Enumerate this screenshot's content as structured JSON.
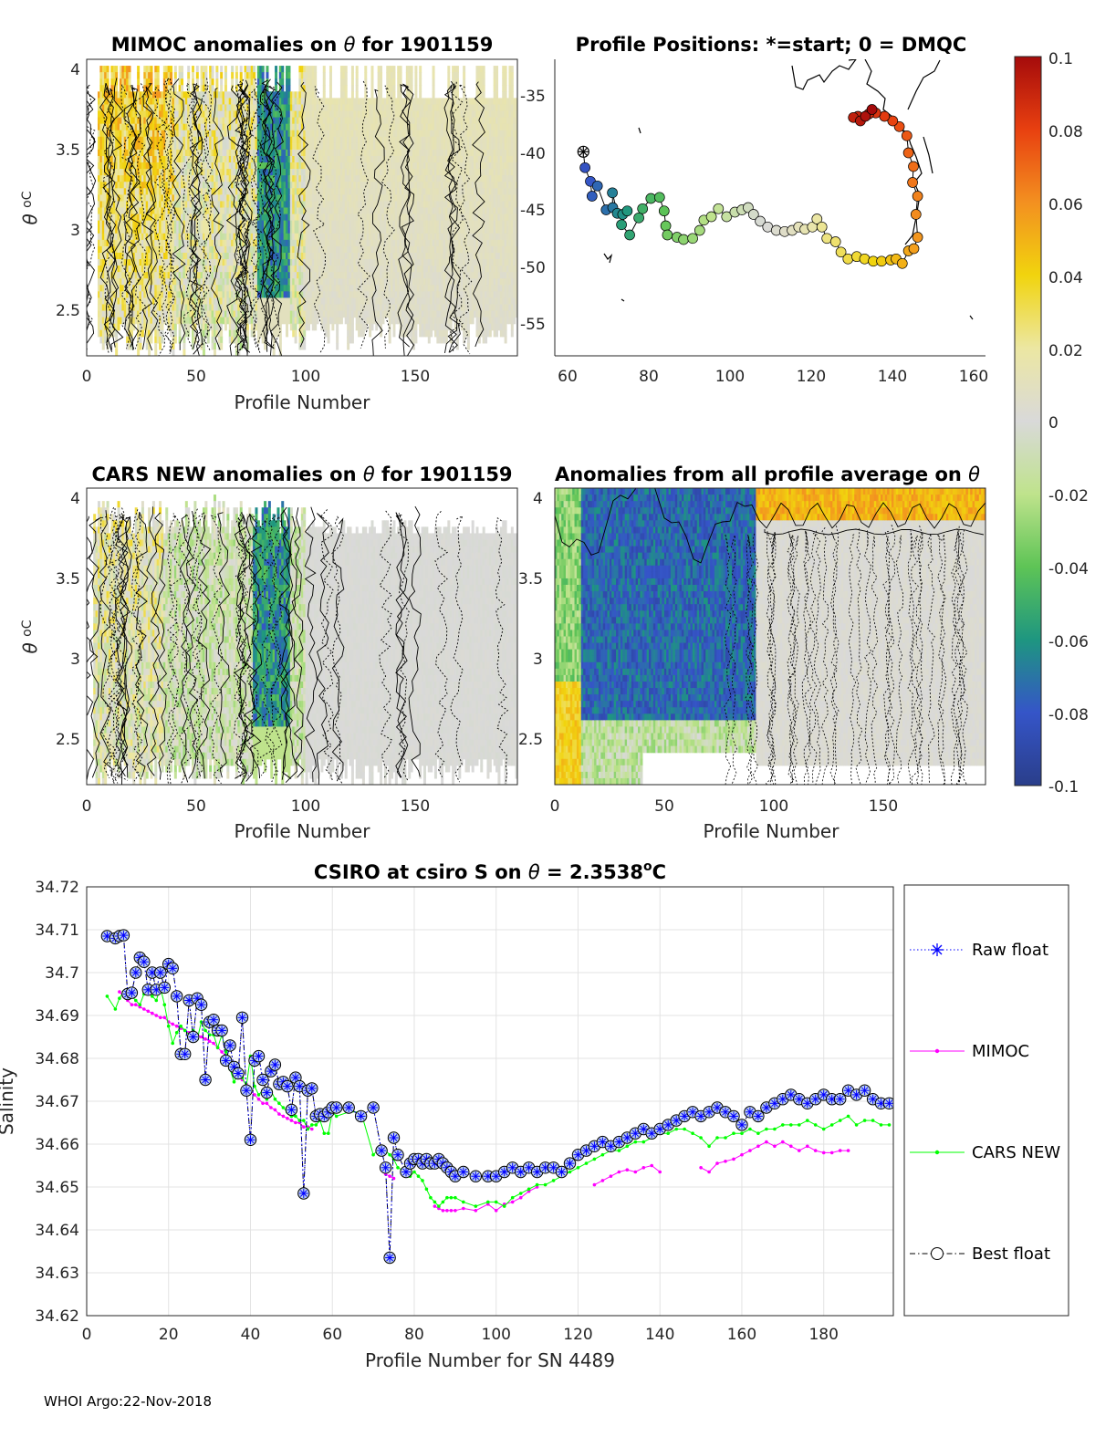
{
  "colors": {
    "raw": "#0000ff",
    "mimoc": "#ff00ff",
    "cars": "#00ff00",
    "best": "#000000",
    "marker_fill": "#bcd0ee",
    "missing_gray": "#d9d9d9"
  },
  "colorbar": {
    "ticks": [
      "0.1",
      "0.08",
      "0.06",
      "0.04",
      "0.02",
      "0",
      "-0.02",
      "-0.04",
      "-0.06",
      "-0.08",
      "-0.1"
    ],
    "range": [
      -0.1,
      0.1
    ]
  },
  "footer": "WHOI Argo:22-Nov-2018",
  "chart_data": [
    {
      "id": "mimoc",
      "type": "heatmap",
      "title_pre": "MIMOC anomalies on",
      "title_sym": "θ",
      "title_post": "for 1901159",
      "xlabel": "Profile Number",
      "ylabel_sym": "θ",
      "ylabel_unit": "oC",
      "xlim": [
        0,
        197
      ],
      "ylim": [
        2.2,
        4.05
      ],
      "xticks": [
        "0",
        "50",
        "100",
        "150"
      ],
      "yticks": [
        "2.5",
        "3",
        "3.5",
        "4"
      ]
    },
    {
      "id": "positions",
      "type": "scatter",
      "title": "Profile Positions: *=start; 0 = DMQC",
      "xlim": [
        58,
        162
      ],
      "ylim": [
        -58,
        -32
      ],
      "xticks": [
        "60",
        "80",
        "100",
        "120",
        "140",
        "160"
      ],
      "yticks": [
        "-35",
        "-40",
        "-45",
        "-50",
        "-55"
      ],
      "track": [
        [
          64.9,
          -40.1
        ],
        [
          65.3,
          -41.5
        ],
        [
          66.6,
          -42.7
        ],
        [
          67.0,
          -44.0
        ],
        [
          68.3,
          -43.1
        ],
        [
          70.4,
          -45.2
        ],
        [
          72.0,
          -45.0
        ],
        [
          71.9,
          -43.7
        ],
        [
          73.1,
          -45.5
        ],
        [
          74.4,
          -45.6
        ],
        [
          75.5,
          -45.3
        ],
        [
          74.1,
          -46.5
        ],
        [
          76.1,
          -47.4
        ],
        [
          78.3,
          -45.9
        ],
        [
          79.2,
          -45.1
        ],
        [
          81.2,
          -44.2
        ],
        [
          83.3,
          -44.1
        ],
        [
          84.4,
          -45.3
        ],
        [
          84.8,
          -46.6
        ],
        [
          85.2,
          -47.4
        ],
        [
          87.5,
          -47.6
        ],
        [
          89.1,
          -47.8
        ],
        [
          91.3,
          -47.7
        ],
        [
          93.0,
          -47.0
        ],
        [
          94.0,
          -46.1
        ],
        [
          95.8,
          -45.8
        ],
        [
          97.5,
          -45.1
        ],
        [
          99.5,
          -45.8
        ],
        [
          101.5,
          -45.4
        ],
        [
          103.2,
          -45.2
        ],
        [
          104.7,
          -45.0
        ],
        [
          106.0,
          -45.6
        ],
        [
          107.6,
          -46.2
        ],
        [
          109.4,
          -46.7
        ],
        [
          111.5,
          -47.0
        ],
        [
          113.5,
          -47.1
        ],
        [
          115.3,
          -47.0
        ],
        [
          116.9,
          -46.7
        ],
        [
          118.4,
          -46.9
        ],
        [
          120.2,
          -46.7
        ],
        [
          121.3,
          -46.0
        ],
        [
          122.5,
          -46.7
        ],
        [
          123.7,
          -47.7
        ],
        [
          125.8,
          -48.0
        ],
        [
          127.1,
          -48.9
        ],
        [
          128.8,
          -49.5
        ],
        [
          130.9,
          -49.3
        ],
        [
          132.8,
          -49.5
        ],
        [
          134.9,
          -49.7
        ],
        [
          136.9,
          -49.7
        ],
        [
          139.1,
          -49.6
        ],
        [
          140.4,
          -49.5
        ],
        [
          141.9,
          -49.9
        ],
        [
          143.4,
          -48.8
        ],
        [
          144.7,
          -48.6
        ],
        [
          145.6,
          -47.6
        ],
        [
          145.2,
          -45.6
        ],
        [
          145.6,
          -44.0
        ],
        [
          144.4,
          -42.8
        ],
        [
          144.6,
          -41.4
        ],
        [
          143.4,
          -40.2
        ],
        [
          143.0,
          -38.7
        ],
        [
          141.2,
          -37.9
        ],
        [
          139.6,
          -37.4
        ],
        [
          137.6,
          -37.0
        ],
        [
          135.5,
          -36.7
        ],
        [
          133.8,
          -36.8
        ],
        [
          131.2,
          -37.0
        ],
        [
          130.1,
          -37.1
        ],
        [
          131.8,
          -37.4
        ],
        [
          133.0,
          -37.0
        ],
        [
          134.6,
          -36.4
        ]
      ]
    },
    {
      "id": "cars",
      "type": "heatmap",
      "title_pre": "CARS NEW anomalies on",
      "title_sym": "θ",
      "title_post": "for 1901159",
      "xlabel": "Profile Number",
      "ylabel_sym": "θ",
      "ylabel_unit": "oC",
      "xlim": [
        0,
        197
      ],
      "ylim": [
        2.2,
        4.05
      ],
      "xticks": [
        "0",
        "50",
        "100",
        "150"
      ],
      "yticks": [
        "2.5",
        "3",
        "3.5",
        "4"
      ]
    },
    {
      "id": "allavg",
      "type": "heatmap",
      "title_pre": "Anomalies from all profile average on",
      "title_sym": "θ",
      "title_post": "",
      "xlabel": "Profile Number",
      "xlim": [
        0,
        197
      ],
      "ylim": [
        2.2,
        4.05
      ],
      "xticks": [
        "0",
        "50",
        "100",
        "150"
      ],
      "yticks": [
        "2.5",
        "3",
        "3.5",
        "4"
      ]
    },
    {
      "id": "salinity",
      "type": "line",
      "title_pre": "CSIRO at csiro S on",
      "title_sym": "θ",
      "title_mid": " = 2.3538",
      "title_sup": "o",
      "title_post": "C",
      "xlabel": "Profile Number for SN 4489",
      "ylabel": "Salinity",
      "xlim": [
        0,
        197
      ],
      "ylim": [
        34.62,
        34.72
      ],
      "xticks": [
        "0",
        "20",
        "40",
        "60",
        "80",
        "100",
        "120",
        "140",
        "160",
        "180"
      ],
      "yticks": [
        "34.62",
        "34.63",
        "34.64",
        "34.65",
        "34.66",
        "34.67",
        "34.68",
        "34.69",
        "34.7",
        "34.71",
        "34.72"
      ],
      "legend": [
        "Raw float",
        "MIMOC",
        "CARS NEW",
        "Best float"
      ],
      "legend_location": "outside-right",
      "anchors": {
        "x": [
          5,
          7,
          8,
          9,
          10,
          11,
          12,
          13,
          14,
          15,
          16,
          17,
          18,
          19,
          20,
          21,
          22,
          23,
          24,
          25,
          26,
          27,
          28,
          29,
          30,
          31,
          32,
          33,
          34,
          35,
          36,
          37,
          38,
          39,
          40,
          41,
          42,
          43,
          44,
          45,
          46,
          47,
          48,
          49,
          50,
          51,
          52,
          53,
          54,
          55,
          56,
          57,
          58,
          59,
          60,
          61,
          64,
          67,
          70,
          72,
          73,
          74,
          75,
          76,
          78,
          79,
          80,
          81,
          82,
          83,
          84,
          85,
          86,
          87,
          88,
          89,
          90,
          92,
          95,
          98,
          100,
          102,
          104,
          106,
          108,
          110,
          112,
          114,
          116,
          118,
          120,
          122,
          124,
          126,
          128,
          130,
          132,
          134,
          136,
          138,
          140,
          142,
          144,
          146,
          148,
          150,
          152,
          154,
          156,
          158,
          160,
          162,
          164,
          166,
          168,
          170,
          172,
          174,
          176,
          178,
          180,
          182,
          184,
          186,
          188,
          190,
          192,
          194,
          196
        ],
        "best": [
          34.7085,
          34.708,
          34.7085,
          34.7087,
          34.695,
          34.6953,
          34.7,
          34.7035,
          34.7025,
          34.696,
          34.7,
          34.696,
          34.7,
          34.6965,
          34.702,
          34.701,
          34.6945,
          34.681,
          34.681,
          34.6935,
          34.685,
          34.694,
          34.6925,
          34.675,
          34.6885,
          34.689,
          34.6865,
          34.6865,
          34.6795,
          34.683,
          34.678,
          34.6765,
          34.6895,
          34.6725,
          34.661,
          34.6795,
          34.6805,
          34.675,
          34.672,
          34.677,
          34.6785,
          34.674,
          34.6745,
          34.6735,
          34.668,
          34.6755,
          34.6735,
          34.6485,
          34.6725,
          34.673,
          34.6665,
          34.667,
          34.6665,
          34.6675,
          34.6685,
          34.6685,
          34.6685,
          34.6665,
          34.6685,
          34.6585,
          34.6545,
          34.6335,
          34.6615,
          34.6575,
          34.6535,
          34.6555,
          34.6565,
          34.6565,
          34.6555,
          34.6565,
          34.6555,
          34.6555,
          34.6565,
          34.6555,
          34.6545,
          34.6535,
          34.6525,
          34.6535,
          34.6525,
          34.6525,
          34.6525,
          34.6535,
          34.6545,
          34.6535,
          34.6545,
          34.6535,
          34.6545,
          34.6545,
          34.6535,
          34.6555,
          34.6575,
          34.6585,
          34.6595,
          34.6605,
          34.6595,
          34.6605,
          34.6615,
          34.6625,
          34.6635,
          34.6625,
          34.6635,
          34.6645,
          34.6655,
          34.6665,
          34.6675,
          34.6665,
          34.6675,
          34.6685,
          34.6675,
          34.6665,
          34.6645,
          34.6675,
          34.6665,
          34.6685,
          34.6695,
          34.6705,
          34.6715,
          34.6705,
          34.6695,
          34.6705,
          34.6715,
          34.6705,
          34.6705,
          34.6725,
          34.6715,
          34.6725,
          34.6705,
          34.6695,
          34.6695
        ],
        "cars": [
          34.6945,
          34.6915,
          34.694,
          34.6955,
          34.695,
          34.6945,
          34.6935,
          34.6925,
          34.695,
          34.6955,
          34.6945,
          34.6935,
          34.6965,
          34.6925,
          34.6875,
          34.6835,
          34.686,
          34.6875,
          34.6865,
          34.6855,
          34.6865,
          34.6845,
          34.6885,
          34.6865,
          34.6855,
          34.6855,
          34.6825,
          34.6855,
          34.6815,
          34.6775,
          34.6745,
          34.6765,
          34.6755,
          34.6735,
          34.6805,
          34.6735,
          34.6715,
          34.6725,
          34.6705,
          34.6725,
          34.6705,
          34.6695,
          34.6685,
          34.6675,
          34.6665,
          34.6665,
          34.6655,
          34.6655,
          34.6635,
          34.6645,
          34.6645,
          34.6655,
          34.6625,
          34.6625,
          34.6675,
          34.6665,
          34.6675,
          34.6675,
          34.6575,
          34.6595,
          34.6585,
          34.6575,
          34.6565,
          34.6545,
          34.6535,
          34.6525,
          34.6535,
          34.6525,
          34.6515,
          34.6495,
          34.6475,
          34.6465,
          34.6455,
          34.6465,
          34.6475,
          34.6475,
          34.6475,
          34.6465,
          34.6455,
          34.6465,
          34.6465,
          34.6455,
          34.6475,
          34.6485,
          34.6495,
          34.6505,
          34.6505,
          34.6515,
          34.6525,
          34.6535,
          34.6545,
          34.6555,
          34.6565,
          34.6575,
          34.6585,
          34.6585,
          34.6595,
          34.6605,
          34.6605,
          34.6615,
          34.6625,
          34.6625,
          34.6635,
          34.6635,
          34.6625,
          34.6615,
          34.6595,
          34.6615,
          34.6615,
          34.6625,
          34.6625,
          34.6635,
          34.6625,
          34.6635,
          34.6635,
          34.6645,
          34.6645,
          34.6645,
          34.6655,
          34.6645,
          34.6635,
          34.6645,
          34.6655,
          34.6665,
          34.6645,
          34.6655,
          34.6655,
          34.6645,
          34.6645
        ],
        "mimoc": [
          null,
          null,
          34.6955,
          34.6945,
          34.6935,
          34.6925,
          34.6925,
          34.692,
          34.6915,
          34.691,
          34.6905,
          34.69,
          34.6895,
          34.6895,
          34.6885,
          34.688,
          34.6875,
          34.687,
          34.6865,
          34.686,
          34.6855,
          34.6855,
          34.685,
          34.6845,
          34.684,
          34.6835,
          34.6825,
          34.6815,
          34.6805,
          34.679,
          34.678,
          34.6765,
          34.675,
          34.674,
          34.6725,
          34.6715,
          34.6705,
          34.6695,
          34.6695,
          34.6685,
          34.668,
          34.667,
          34.6665,
          34.666,
          34.6655,
          34.665,
          34.665,
          34.664,
          34.664,
          34.6635,
          null,
          null,
          null,
          null,
          null,
          null,
          null,
          null,
          null,
          null,
          34.653,
          34.6525,
          34.652,
          null,
          null,
          null,
          null,
          null,
          null,
          null,
          null,
          34.6455,
          34.645,
          34.6445,
          34.6445,
          34.6445,
          34.6445,
          34.645,
          34.6445,
          34.646,
          34.6445,
          34.646,
          34.6465,
          34.6475,
          34.649,
          34.65,
          null,
          null,
          null,
          null,
          null,
          null,
          34.6505,
          34.6515,
          34.6525,
          34.6535,
          34.654,
          34.6535,
          34.6545,
          34.655,
          34.6535,
          null,
          null,
          null,
          null,
          34.6545,
          34.6535,
          34.6555,
          34.656,
          34.6565,
          34.6575,
          34.6585,
          34.6595,
          34.6605,
          34.6595,
          34.6605,
          34.6595,
          34.6585,
          34.6595,
          34.6585,
          34.658,
          34.658,
          34.6585,
          34.6585
        ]
      }
    }
  ]
}
